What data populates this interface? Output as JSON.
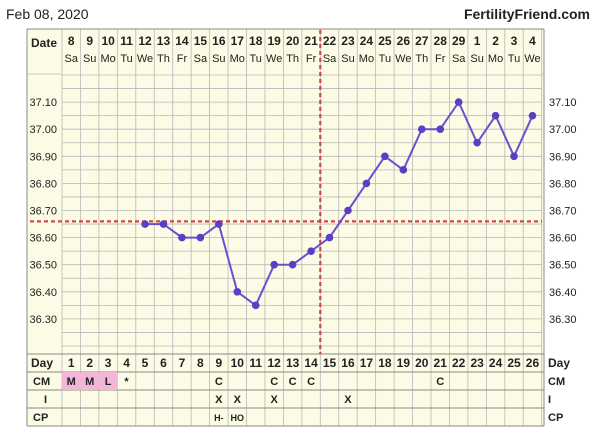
{
  "header": {
    "date": "Feb 08, 2020",
    "brand": "FertilityFriend.com"
  },
  "colors": {
    "background": "#fcfbe6",
    "grid": "#b8b8b8",
    "line": "#6b4fd0",
    "point": "#5a3ec4",
    "coverline": "#d04848",
    "menstruation": "#f2b6d8"
  },
  "chart_data": {
    "type": "line",
    "date_label": "Date",
    "date_numbers": [
      "8",
      "9",
      "10",
      "11",
      "12",
      "13",
      "14",
      "15",
      "16",
      "17",
      "18",
      "19",
      "20",
      "21",
      "22",
      "23",
      "24",
      "25",
      "26",
      "27",
      "28",
      "29",
      "1",
      "2",
      "3",
      "4"
    ],
    "weekdays": [
      "Sa",
      "Su",
      "Mo",
      "Tu",
      "We",
      "Th",
      "Fr",
      "Sa",
      "Su",
      "Mo",
      "Tu",
      "We",
      "Th",
      "Fr",
      "Sa",
      "Su",
      "Mo",
      "Tu",
      "We",
      "Th",
      "Fr",
      "Sa",
      "Su",
      "Mo",
      "Tu",
      "We"
    ],
    "days": [
      1,
      2,
      3,
      4,
      5,
      6,
      7,
      8,
      9,
      10,
      11,
      12,
      13,
      14,
      15,
      16,
      17,
      18,
      19,
      20,
      21,
      22,
      23,
      24,
      25,
      26
    ],
    "temperatures": [
      null,
      null,
      null,
      null,
      36.65,
      36.65,
      36.6,
      36.6,
      36.65,
      36.4,
      36.35,
      36.5,
      36.5,
      36.55,
      36.6,
      36.7,
      36.8,
      36.9,
      36.85,
      37.0,
      37.0,
      37.1,
      36.95,
      37.05,
      36.9,
      37.05
    ],
    "ylim": [
      36.2,
      37.2
    ],
    "yticks": [
      "37.10",
      "37.00",
      "36.90",
      "36.80",
      "36.70",
      "36.60",
      "36.50",
      "36.40",
      "36.30"
    ],
    "coverline": 36.66,
    "ovulation_day": 15,
    "grid": true
  },
  "rows": {
    "day_label": "Day",
    "cm_label": "CM",
    "i_label": "I",
    "cp_label": "CP",
    "cm": [
      "M",
      "M",
      "L",
      "*",
      "",
      "",
      "",
      "",
      "C",
      "",
      "",
      "C",
      "C",
      "C",
      "",
      "",
      "",
      "",
      "",
      "",
      "C",
      "",
      "",
      "",
      "",
      ""
    ],
    "i": [
      "",
      "",
      "",
      "",
      "",
      "",
      "",
      "",
      "X",
      "X",
      "",
      "X",
      "",
      "",
      "",
      "X",
      "",
      "",
      "",
      "",
      "",
      "",
      "",
      "",
      "",
      ""
    ],
    "cp": [
      "",
      "",
      "",
      "",
      "",
      "",
      "",
      "",
      "H-",
      "HO",
      "",
      "",
      "",
      "",
      "",
      "",
      "",
      "",
      "",
      "",
      "",
      "",
      "",
      "",
      "",
      ""
    ],
    "menstruation_days": [
      1,
      2,
      3
    ]
  }
}
